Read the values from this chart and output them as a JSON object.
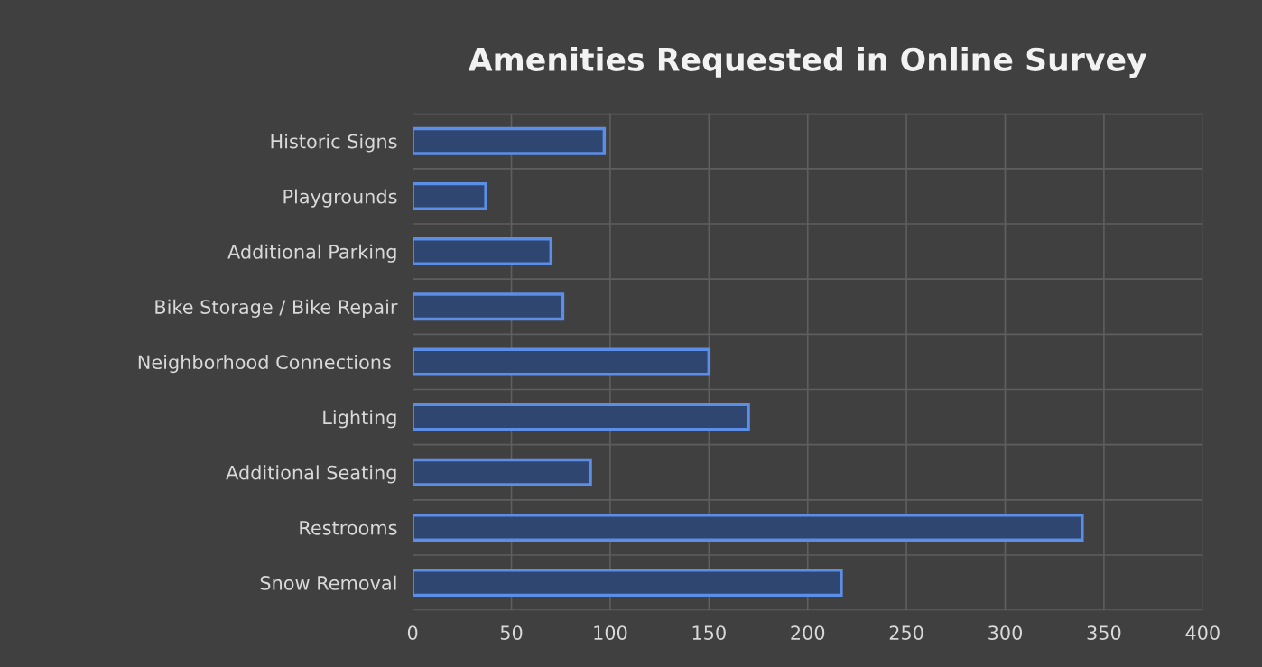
{
  "chart_data": {
    "type": "bar",
    "orientation": "horizontal",
    "title": "Amenities Requested in Online Survey",
    "categories": [
      "Historic Signs",
      "Playgrounds",
      "Additional Parking",
      "Bike Storage / Bike Repair",
      "Neighborhood Connections ",
      "Lighting",
      "Additional Seating",
      "Restrooms",
      "Snow Removal"
    ],
    "values": [
      97,
      37,
      70,
      76,
      150,
      170,
      90,
      339,
      217
    ],
    "color": "#2e4670",
    "xlim": [
      0,
      400
    ],
    "xticks": [
      0,
      50,
      100,
      150,
      200,
      250,
      300,
      350,
      400
    ],
    "grid": true
  }
}
